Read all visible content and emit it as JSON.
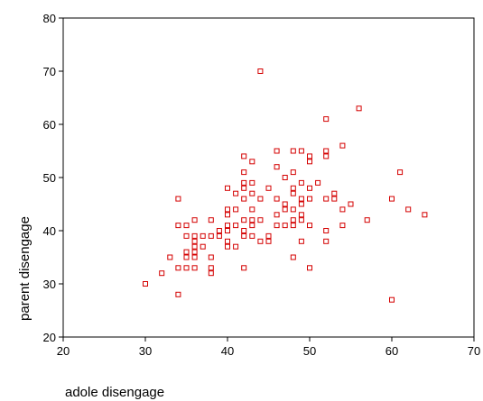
{
  "chart_data": {
    "type": "scatter",
    "xlabel": "adole disengage",
    "ylabel": "parent disengage",
    "xlim": [
      20,
      70
    ],
    "ylim": [
      20,
      80
    ],
    "xticks": [
      "20",
      "30",
      "40",
      "50",
      "60",
      "70"
    ],
    "yticks": [
      "20",
      "30",
      "40",
      "50",
      "60",
      "70",
      "80"
    ],
    "grid": false,
    "marker_color": "#d40000",
    "marker": "hollow-square",
    "points": [
      [
        30,
        30
      ],
      [
        32,
        32
      ],
      [
        33,
        35
      ],
      [
        34,
        28
      ],
      [
        34,
        33
      ],
      [
        34,
        41
      ],
      [
        34,
        46
      ],
      [
        35,
        33
      ],
      [
        35,
        35
      ],
      [
        35,
        36
      ],
      [
        35,
        39
      ],
      [
        35,
        41
      ],
      [
        36,
        33
      ],
      [
        36,
        35
      ],
      [
        36,
        36
      ],
      [
        36,
        37
      ],
      [
        36,
        38
      ],
      [
        36,
        39
      ],
      [
        36,
        42
      ],
      [
        37,
        37
      ],
      [
        37,
        39
      ],
      [
        38,
        32
      ],
      [
        38,
        33
      ],
      [
        38,
        35
      ],
      [
        38,
        39
      ],
      [
        38,
        42
      ],
      [
        39,
        39
      ],
      [
        39,
        40
      ],
      [
        40,
        37
      ],
      [
        40,
        38
      ],
      [
        40,
        40
      ],
      [
        40,
        41
      ],
      [
        40,
        43
      ],
      [
        40,
        44
      ],
      [
        40,
        48
      ],
      [
        41,
        37
      ],
      [
        41,
        41
      ],
      [
        41,
        44
      ],
      [
        41,
        47
      ],
      [
        42,
        33
      ],
      [
        42,
        39
      ],
      [
        42,
        40
      ],
      [
        42,
        42
      ],
      [
        42,
        46
      ],
      [
        42,
        48
      ],
      [
        42,
        49
      ],
      [
        42,
        51
      ],
      [
        42,
        54
      ],
      [
        43,
        39
      ],
      [
        43,
        41
      ],
      [
        43,
        42
      ],
      [
        43,
        44
      ],
      [
        43,
        47
      ],
      [
        43,
        49
      ],
      [
        43,
        53
      ],
      [
        44,
        38
      ],
      [
        44,
        42
      ],
      [
        44,
        46
      ],
      [
        44,
        70
      ],
      [
        45,
        38
      ],
      [
        45,
        39
      ],
      [
        45,
        48
      ],
      [
        46,
        41
      ],
      [
        46,
        43
      ],
      [
        46,
        46
      ],
      [
        46,
        52
      ],
      [
        46,
        55
      ],
      [
        47,
        41
      ],
      [
        47,
        44
      ],
      [
        47,
        45
      ],
      [
        47,
        50
      ],
      [
        48,
        35
      ],
      [
        48,
        41
      ],
      [
        48,
        42
      ],
      [
        48,
        44
      ],
      [
        48,
        47
      ],
      [
        48,
        48
      ],
      [
        48,
        51
      ],
      [
        48,
        55
      ],
      [
        49,
        38
      ],
      [
        49,
        42
      ],
      [
        49,
        43
      ],
      [
        49,
        45
      ],
      [
        49,
        46
      ],
      [
        49,
        49
      ],
      [
        49,
        55
      ],
      [
        50,
        33
      ],
      [
        50,
        41
      ],
      [
        50,
        46
      ],
      [
        50,
        48
      ],
      [
        50,
        53
      ],
      [
        50,
        54
      ],
      [
        51,
        49
      ],
      [
        52,
        38
      ],
      [
        52,
        40
      ],
      [
        52,
        46
      ],
      [
        52,
        54
      ],
      [
        52,
        55
      ],
      [
        52,
        61
      ],
      [
        53,
        46
      ],
      [
        53,
        47
      ],
      [
        54,
        41
      ],
      [
        54,
        44
      ],
      [
        54,
        56
      ],
      [
        55,
        45
      ],
      [
        56,
        63
      ],
      [
        57,
        42
      ],
      [
        60,
        27
      ],
      [
        60,
        46
      ],
      [
        61,
        51
      ],
      [
        62,
        44
      ],
      [
        64,
        43
      ]
    ]
  }
}
